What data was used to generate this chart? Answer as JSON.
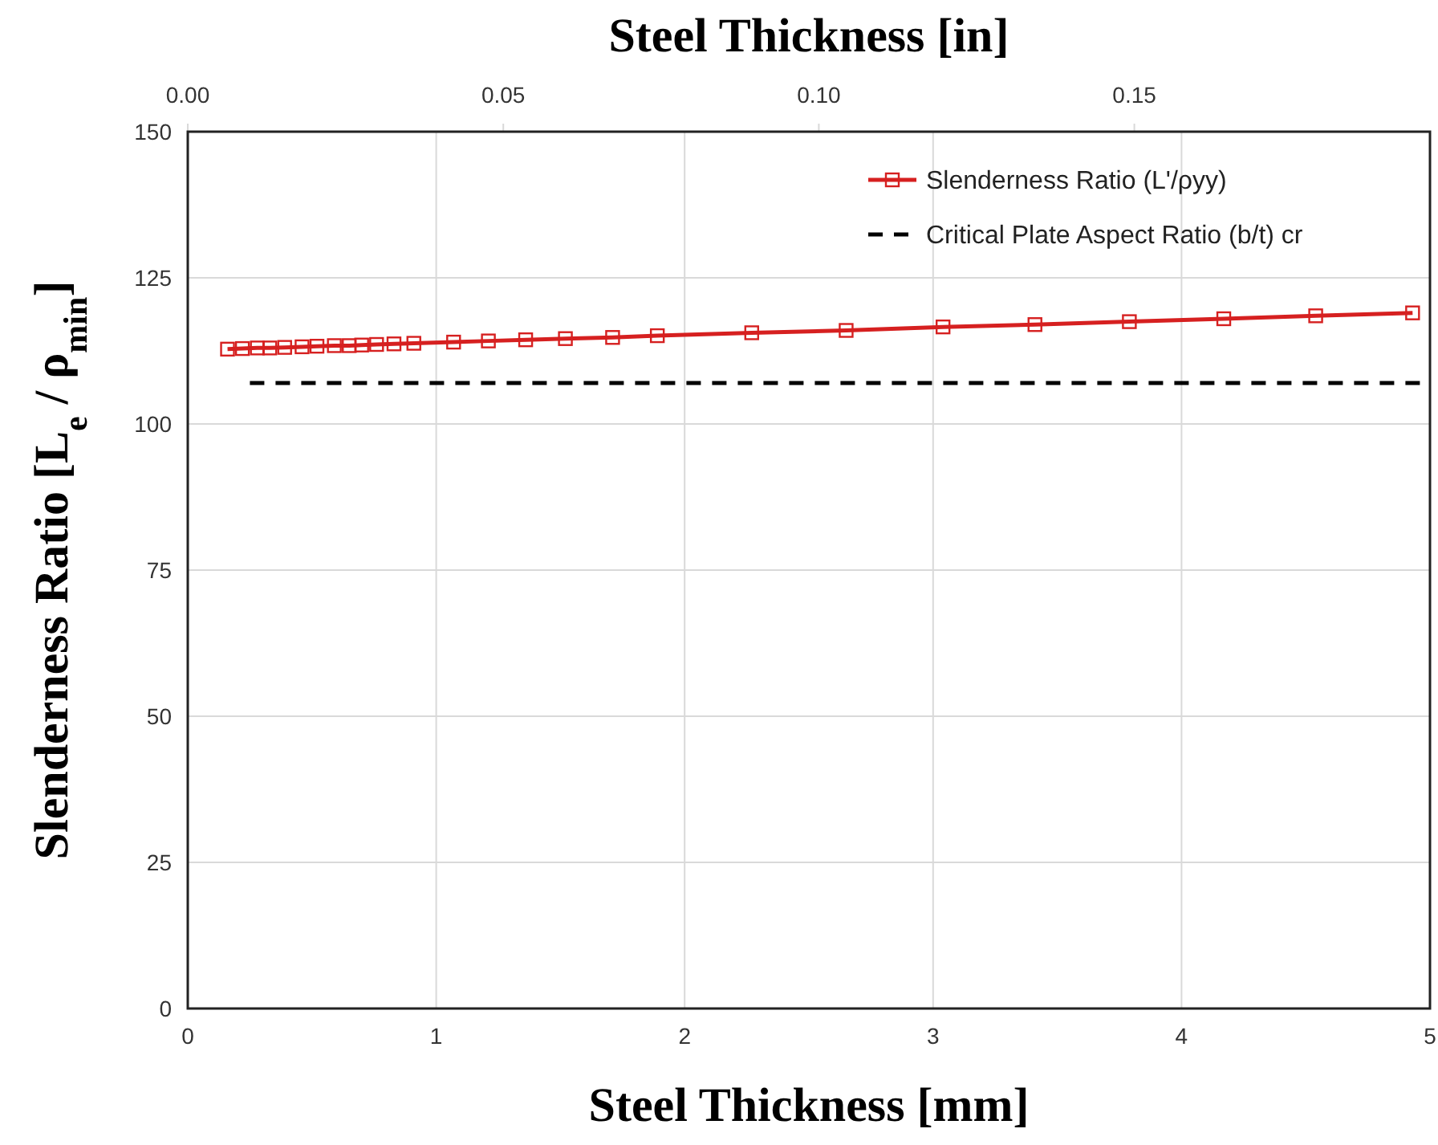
{
  "chart_data": {
    "type": "line",
    "xlabel": "Steel Thickness [mm]",
    "x2label": "Steel Thickness [in]",
    "ylabel": "Slenderness Ratio [L$_{e}$ / ρ$_{min}$]",
    "xlim": [
      0,
      5
    ],
    "xticks": [
      0,
      1,
      2,
      3,
      4,
      5
    ],
    "x2lim": [
      0,
      0.19685
    ],
    "x2ticks": [
      {
        "value": 0,
        "label": "0.00"
      },
      {
        "value": 0.05,
        "label": "0.05"
      },
      {
        "value": 0.1,
        "label": "0.10"
      },
      {
        "value": 0.15,
        "label": "0.15"
      }
    ],
    "ylim": [
      0,
      150
    ],
    "yticks": [
      0,
      25,
      50,
      75,
      100,
      125,
      150
    ],
    "grid": true,
    "legend": "top right",
    "series": [
      {
        "name": "Slenderness Ratio (L'/ρyy)",
        "color": "#d62020",
        "marker": "square",
        "line_style": "solid",
        "x": [
          0.16,
          0.22,
          0.28,
          0.33,
          0.39,
          0.46,
          0.52,
          0.59,
          0.65,
          0.7,
          0.76,
          0.83,
          0.91,
          1.07,
          1.21,
          1.36,
          1.52,
          1.71,
          1.89,
          2.27,
          2.65,
          3.04,
          3.41,
          3.79,
          4.17,
          4.54,
          4.93
        ],
        "values": [
          112.8,
          112.9,
          113,
          113,
          113.1,
          113.2,
          113.3,
          113.4,
          113.4,
          113.5,
          113.6,
          113.7,
          113.8,
          114,
          114.2,
          114.4,
          114.6,
          114.8,
          115.1,
          115.6,
          116,
          116.6,
          117,
          117.5,
          118,
          118.5,
          119
        ]
      },
      {
        "name": "Critical Plate Aspect Ratio (b/t) cr",
        "color": "#000000",
        "marker": "none",
        "line_style": "dashed",
        "x": [
          0.25,
          5
        ],
        "values": [
          107,
          107
        ]
      }
    ]
  }
}
